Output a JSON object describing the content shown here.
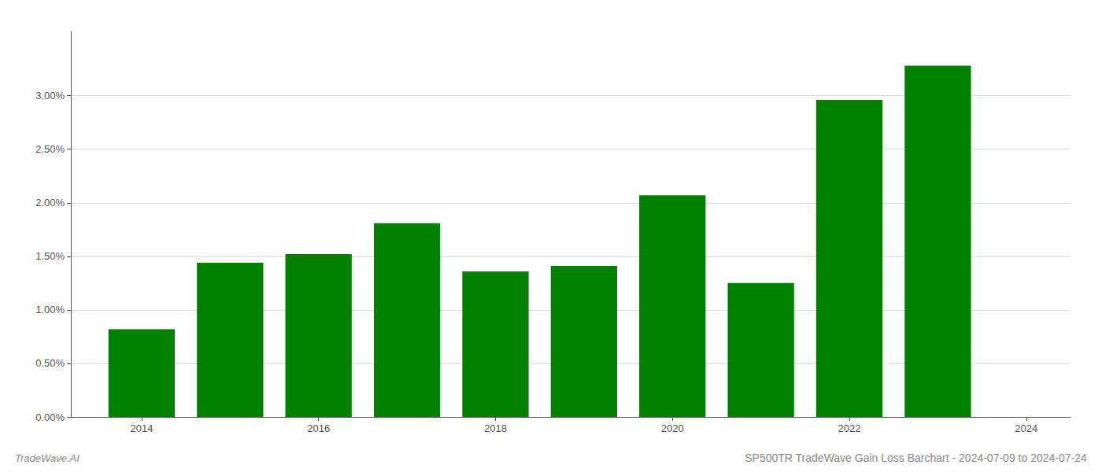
{
  "chart_data": {
    "type": "bar",
    "title": "SP500TR TradeWave Gain Loss Barchart - 2024-07-09 to 2024-07-24",
    "annotations": [
      "TradeWave.AI"
    ],
    "x": [
      2014,
      2015,
      2016,
      2017,
      2018,
      2019,
      2020,
      2021,
      2022,
      2023
    ],
    "values": [
      0.0082,
      0.0144,
      0.0152,
      0.0181,
      0.0136,
      0.0141,
      0.0207,
      0.0125,
      0.0296,
      0.0328
    ],
    "color": "#008000",
    "xlim": [
      2013.2,
      2024.5
    ],
    "xticks": [
      2014,
      2016,
      2018,
      2020,
      2022,
      2024
    ],
    "ylim": [
      0,
      0.036
    ],
    "yticks": [
      {
        "value": 0,
        "label": "0.00%"
      },
      {
        "value": 0.005,
        "label": "0.50%"
      },
      {
        "value": 0.01,
        "label": "1.00%"
      },
      {
        "value": 0.015,
        "label": "1.50%"
      },
      {
        "value": 0.02,
        "label": "2.00%"
      },
      {
        "value": 0.025,
        "label": "2.50%"
      },
      {
        "value": 0.03,
        "label": "3.00%"
      }
    ],
    "grid": true
  }
}
